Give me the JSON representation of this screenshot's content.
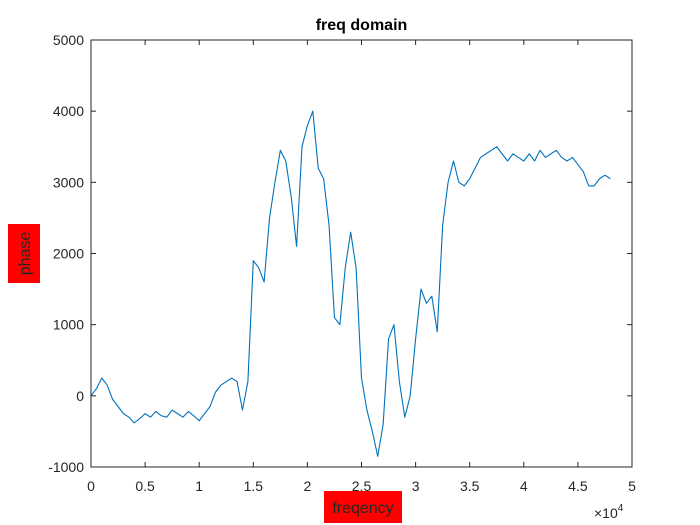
{
  "chart_data": {
    "type": "line",
    "title": "freq domain",
    "xlabel": "freqency",
    "ylabel": "phase",
    "x_exponent_label": "×10",
    "x_exponent_power": "4",
    "xlim": [
      0,
      50000
    ],
    "ylim": [
      -1000,
      5000
    ],
    "x_ticks": [
      "0",
      "0.5",
      "1",
      "1.5",
      "2",
      "2.5",
      "3",
      "3.5",
      "4",
      "4.5",
      "5"
    ],
    "y_ticks": [
      "5000",
      "4000",
      "3000",
      "2000",
      "1000",
      "0",
      "-1000"
    ],
    "label_background": "#ff0000",
    "series_color": "#0072bd",
    "grid": false,
    "series": [
      {
        "x": [
          0,
          500,
          1000,
          1500,
          2000,
          2500,
          3000,
          3500,
          4000,
          4500,
          5000,
          5500,
          6000,
          6500,
          7000,
          7500,
          8000,
          8500,
          9000,
          9500,
          10000,
          10500,
          11000,
          11500,
          12000,
          12500,
          13000,
          13500,
          14000,
          14500,
          15000,
          15500,
          16000,
          16500,
          17000,
          17500,
          18000,
          18500,
          19000,
          19500,
          20000,
          20500,
          21000,
          21500,
          22000,
          22500,
          23000,
          23500,
          24000,
          24500,
          25000,
          25500,
          26000,
          26500,
          27000,
          27500,
          28000,
          28500,
          29000,
          29500,
          30000,
          30500,
          31000,
          31500,
          32000,
          32500,
          33000,
          33500,
          34000,
          34500,
          35000,
          35500,
          36000,
          36500,
          37000,
          37500,
          38000,
          38500,
          39000,
          39500,
          40000,
          40500,
          41000,
          41500,
          42000,
          42500,
          43000,
          43500,
          44000,
          44500,
          45000,
          45500,
          46000,
          46500,
          47000,
          47500,
          48000
        ],
        "y": [
          0,
          100,
          250,
          150,
          -50,
          -150,
          -250,
          -300,
          -380,
          -320,
          -250,
          -300,
          -220,
          -280,
          -300,
          -200,
          -250,
          -300,
          -220,
          -280,
          -350,
          -250,
          -150,
          50,
          150,
          200,
          250,
          200,
          -200,
          200,
          1900,
          1800,
          1600,
          2500,
          3000,
          3450,
          3300,
          2800,
          2100,
          3500,
          3800,
          4000,
          3200,
          3050,
          2400,
          1100,
          1000,
          1800,
          2300,
          1800,
          250,
          -200,
          -500,
          -850,
          -400,
          800,
          1000,
          200,
          -300,
          0,
          800,
          1500,
          1300,
          1400,
          900,
          2400,
          3000,
          3300,
          3000,
          2950,
          3050,
          3200,
          3350,
          3400,
          3450,
          3500,
          3400,
          3300,
          3400,
          3350,
          3300,
          3400,
          3300,
          3450,
          3350,
          3400,
          3450,
          3350,
          3300,
          3350,
          3250,
          3150,
          2950,
          2950,
          3050,
          3100,
          3050
        ]
      }
    ]
  }
}
